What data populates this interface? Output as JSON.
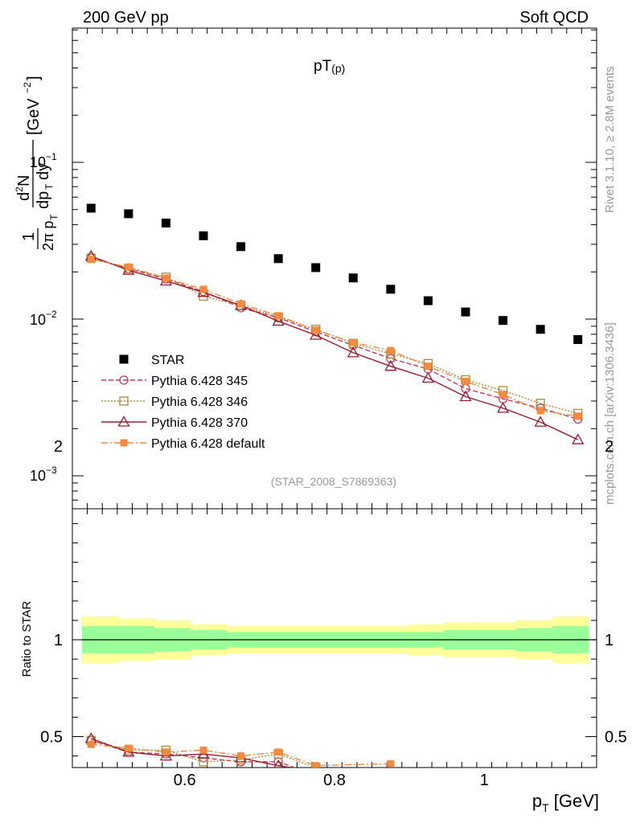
{
  "header": {
    "left": "200 GeV pp",
    "right": "Soft QCD"
  },
  "side_labels": {
    "rivet": "Rivet 3.1.10, ≥ 2.8M events",
    "source": "mcplots.cern.ch [arXiv:1306.3436]"
  },
  "colors": {
    "star": "#000000",
    "p345": "#c0395a",
    "p346": "#a88a3a",
    "p370": "#9a1a30",
    "pdef": "#f78a3c",
    "band_outer": "#ffff99",
    "band_inner": "#99ff99"
  },
  "chart_data": [
    {
      "type": "scatter",
      "title": "pT(p)",
      "title_main": "pT",
      "title_sub": "(p)",
      "ylabel": "1/(2π pT) d²N/(dpT dy) [GeV⁻²]",
      "yscale": "log",
      "xlim": [
        0.45,
        1.15
      ],
      "ylim": [
        0.0006,
        0.8
      ],
      "tick_labels": {
        "y_exp_base": "10",
        "y_exps": [
          "−1",
          "−2",
          "−3"
        ]
      },
      "watermark": "(STAR_2008_S7869363)",
      "x": [
        0.475,
        0.525,
        0.575,
        0.625,
        0.675,
        0.725,
        0.775,
        0.825,
        0.875,
        0.925,
        0.975,
        1.025,
        1.075,
        1.125
      ],
      "series": [
        {
          "name": "STAR",
          "key": "star",
          "marker": "square-filled",
          "line": "none",
          "values": [
            0.051,
            0.047,
            0.041,
            0.034,
            0.029,
            0.0243,
            0.0213,
            0.0183,
            0.0155,
            0.0131,
            0.0111,
            0.0098,
            0.0086,
            0.0074
          ]
        },
        {
          "name": "Pythia 6.428 345",
          "key": "p345",
          "marker": "circle-open",
          "line": "dashed",
          "values": [
            0.0245,
            0.021,
            0.018,
            0.015,
            0.0118,
            0.0102,
            0.0083,
            0.0068,
            0.0056,
            0.0048,
            0.0036,
            0.0031,
            0.0027,
            0.0023
          ]
        },
        {
          "name": "Pythia 6.428 346",
          "key": "p346",
          "marker": "square-open",
          "line": "dotted",
          "values": [
            0.0245,
            0.021,
            0.0185,
            0.014,
            0.0122,
            0.0103,
            0.0086,
            0.007,
            0.006,
            0.0052,
            0.0041,
            0.0035,
            0.0029,
            0.0025
          ]
        },
        {
          "name": "Pythia 6.428 370",
          "key": "p370",
          "marker": "triangle-open",
          "line": "solid",
          "values": [
            0.0252,
            0.0205,
            0.0175,
            0.0148,
            0.0122,
            0.0097,
            0.0079,
            0.0061,
            0.005,
            0.0042,
            0.0032,
            0.0027,
            0.0022,
            0.0017
          ]
        },
        {
          "name": "Pythia 6.428 default",
          "key": "pdef",
          "marker": "square-filled-small",
          "line": "dashdot",
          "values": [
            0.024,
            0.0215,
            0.0182,
            0.0155,
            0.0125,
            0.0105,
            0.0085,
            0.0071,
            0.0063,
            0.005,
            0.004,
            0.0033,
            0.0026,
            0.0024
          ]
        }
      ]
    },
    {
      "type": "line",
      "ylabel": "Ratio to STAR",
      "xlabel": "pT [GeV]",
      "xlabel_main": "p",
      "xlabel_sub": "T",
      "xlabel_unit": "[GeV]",
      "xlim": [
        0.45,
        1.15
      ],
      "ylim": [
        0.34,
        2.35
      ],
      "x_ticks": [
        0.6,
        0.8,
        1.0
      ],
      "x_tick_labels": [
        "0.6",
        "0.8",
        "1"
      ],
      "y_ticks": [
        0.5,
        1,
        2
      ],
      "y_tick_labels": [
        "0.5",
        "1",
        "2"
      ],
      "reference_band": {
        "inner": [
          0.07,
          0.07,
          0.06,
          0.05,
          0.04,
          0.04,
          0.04,
          0.04,
          0.04,
          0.04,
          0.05,
          0.05,
          0.06,
          0.07
        ],
        "outer": [
          0.12,
          0.11,
          0.1,
          0.08,
          0.07,
          0.07,
          0.07,
          0.07,
          0.07,
          0.08,
          0.09,
          0.09,
          0.1,
          0.12
        ]
      },
      "x": [
        0.475,
        0.525,
        0.575,
        0.625,
        0.675,
        0.725,
        0.775,
        0.875
      ],
      "series": [
        {
          "name": "Pythia 6.428 345",
          "key": "p345",
          "values": [
            0.48,
            0.42,
            0.41,
            0.39,
            0.37,
            0.37,
            0.3,
            0.3
          ]
        },
        {
          "name": "Pythia 6.428 346",
          "key": "p346",
          "values": [
            0.48,
            0.43,
            0.43,
            0.37,
            0.38,
            0.41,
            0.34,
            0.3
          ]
        },
        {
          "name": "Pythia 6.428 370",
          "key": "p370",
          "values": [
            0.49,
            0.42,
            0.4,
            0.41,
            0.39,
            0.35,
            0.32,
            0.3
          ]
        },
        {
          "name": "Pythia 6.428 default",
          "key": "pdef",
          "values": [
            0.46,
            0.44,
            0.42,
            0.43,
            0.4,
            0.42,
            0.35,
            0.36
          ]
        }
      ]
    }
  ]
}
